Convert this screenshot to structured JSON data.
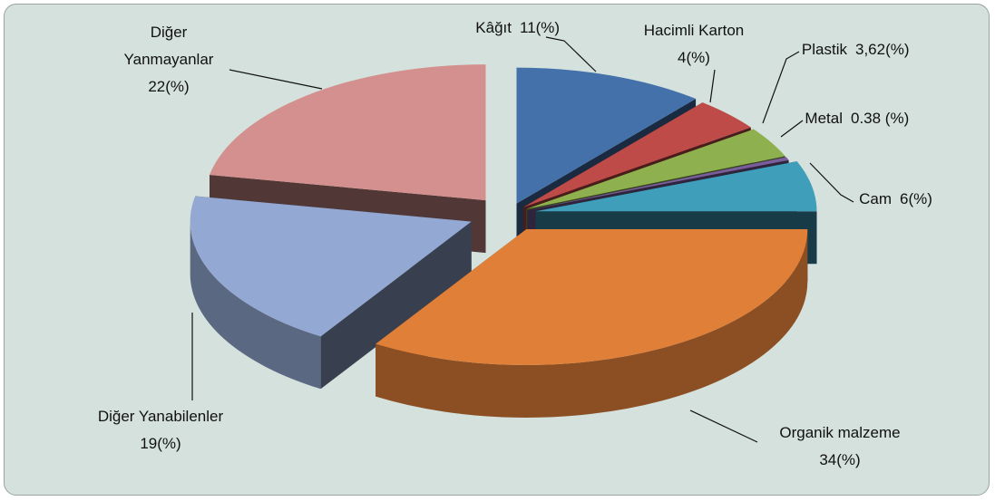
{
  "chart_data": {
    "type": "pie3d",
    "categories": [
      "Kâğıt",
      "Hacimli Karton",
      "Plastik",
      "Metal",
      "Cam",
      "Organik malzeme",
      "Diğer Yanabilenler",
      "Diğer Yanmayanlar"
    ],
    "values": [
      11,
      4,
      3.62,
      0.38,
      6,
      34,
      19,
      22
    ],
    "value_labels": [
      "11(%)",
      "4(%)",
      "3,62(%)",
      "0.38 (%)",
      "6(%)",
      "34(%)",
      "19(%)",
      "22(%)"
    ],
    "colors": [
      "#4571ab",
      "#be4b48",
      "#8fb04e",
      "#7a5e9c",
      "#3f9fba",
      "#e08038",
      "#93a8d2",
      "#d4908e"
    ]
  }
}
